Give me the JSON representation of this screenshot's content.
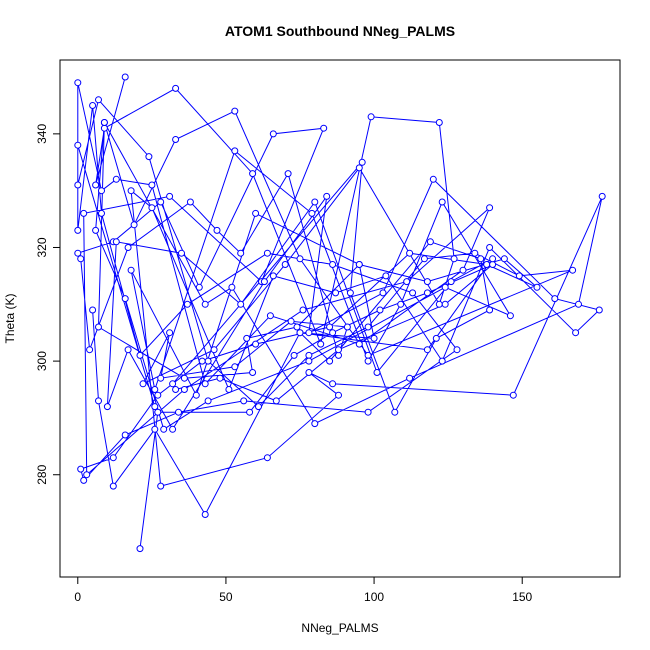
{
  "chart_data": {
    "type": "line",
    "title": "ATOM1 Southbound NNeg_PALMS",
    "xlabel": "NNeg_PALMS",
    "ylabel": "Theta (K)",
    "xlim": [
      -6,
      183
    ],
    "ylim": [
      262,
      353
    ],
    "xticks": [
      0,
      50,
      100,
      150
    ],
    "yticks": [
      280,
      300,
      320,
      340
    ],
    "series_color": "#0000ff",
    "markers": "open circles joined by lines",
    "series": [
      {
        "x": [
          16,
          6,
          9,
          33,
          59,
          82,
          99,
          122,
          127,
          122,
          95,
          70,
          46,
          22,
          31,
          28,
          53,
          72,
          91,
          88,
          71,
          55,
          47,
          38,
          17,
          4,
          1,
          0,
          12,
          28,
          41,
          66,
          83,
          62,
          31,
          2,
          3,
          36,
          76,
          111,
          139,
          130,
          95,
          65,
          43,
          25,
          13,
          8,
          0,
          0,
          7,
          24,
          44,
          61,
          78,
          98,
          117,
          134,
          149,
          167,
          98,
          75,
          53,
          33,
          19,
          9,
          7,
          36,
          59,
          57,
          74,
          95,
          118,
          144,
          155,
          138,
          112,
          85,
          60,
          42,
          27,
          12,
          1,
          2,
          16,
          34,
          56,
          98,
          128,
          113,
          86,
          64,
          37,
          21,
          8,
          5,
          0,
          0,
          26,
          27,
          21,
          27,
          58,
          73,
          86,
          102,
          118,
          140,
          124,
          88,
          67,
          48,
          33,
          32,
          96,
          92,
          107,
          121,
          139,
          136,
          119,
          85,
          75,
          100,
          95,
          60,
          40,
          18,
          26,
          53,
          79,
          98,
          109,
          123,
          146,
          124,
          78,
          44,
          29,
          16,
          6,
          9,
          43,
          52,
          80,
          112,
          169,
          177,
          147,
          86,
          78,
          88,
          64,
          28,
          18,
          25,
          51,
          66,
          87,
          104,
          123,
          139,
          168,
          176,
          161,
          120,
          103,
          78,
          84,
          63,
          32,
          17,
          10,
          13,
          35,
          55,
          80,
          101,
          126,
          140,
          118,
          75,
          43,
          26,
          12,
          7,
          5
        ],
        "y": [
          350,
          331,
          341,
          348,
          333,
          303,
          343,
          342,
          318,
          310,
          334,
          317,
          302,
          296,
          305,
          297,
          299,
          307,
          306,
          301,
          333,
          319,
          323,
          328,
          320,
          302,
          318,
          319,
          321,
          328,
          313,
          340,
          341,
          314,
          329,
          326,
          280,
          295,
          309,
          314,
          327,
          316,
          303,
          308,
          296,
          331,
          332,
          330,
          349,
          331,
          346,
          336,
          300,
          292,
          301,
          306,
          318,
          319,
          315,
          316,
          301,
          318,
          344,
          339,
          324,
          342,
          306,
          297,
          298,
          304,
          306,
          317,
          314,
          318,
          313,
          317,
          319,
          306,
          303,
          300,
          294,
          283,
          281,
          279,
          287,
          291,
          293,
          291,
          302,
          312,
          317,
          319,
          310,
          301,
          326,
          345,
          323,
          338,
          292,
          291,
          267,
          291,
          291,
          301,
          305,
          309,
          312,
          317,
          310,
          302,
          293,
          297,
          295,
          296,
          335,
          312,
          291,
          304,
          309,
          318,
          321,
          300,
          305,
          304,
          317,
          326,
          294,
          316,
          295,
          337,
          326,
          300,
          310,
          328,
          308,
          313,
          300,
          293,
          288,
          311,
          323,
          342,
          310,
          313,
          289,
          297,
          310,
          329,
          294,
          296,
          298,
          294,
          283,
          278,
          330,
          327,
          295,
          315,
          312,
          315,
          300,
          320,
          305,
          309,
          311,
          332,
          312,
          305,
          329,
          314,
          288,
          302,
          292,
          321,
          319,
          310,
          328,
          298,
          314,
          318,
          302,
          305,
          273,
          288,
          278,
          293,
          309
        ]
      }
    ]
  }
}
